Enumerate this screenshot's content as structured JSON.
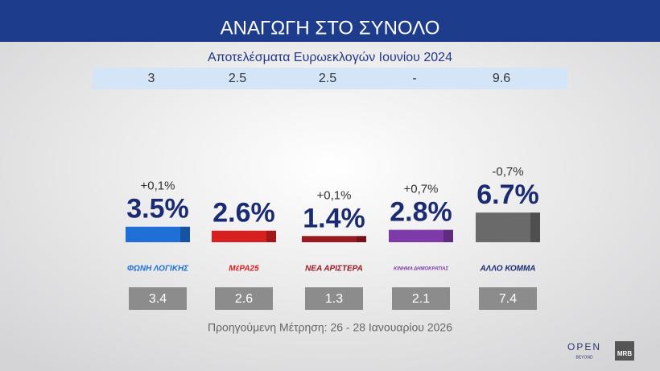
{
  "chart_data": {
    "type": "bar",
    "title": "ΑΝΑΓΩΓΗ ΣΤΟ ΣΥΝΟΛΟ",
    "subtitle": "Αποτελέσματα Ευρωεκλογών Ιουνίου 2024",
    "euro_values": [
      3,
      2.5,
      2.5,
      "-",
      9.6
    ],
    "categories": [
      "ΦΩΝΗ ΛΟΓΙΚΗΣ",
      "ΜέΡΑ25",
      "ΝΕΑ ΑΡΙΣΤΕΡΑ",
      "ΚΙΝΗΜΑ ΔΗΜΟΚΡΑΤΙΑΣ",
      "ΑΛΛΟ ΚΟΜΜΑ"
    ],
    "values": [
      3.5,
      2.6,
      1.4,
      2.8,
      6.7
    ],
    "value_labels": [
      "3.5%",
      "2.6%",
      "1.4%",
      "2.8%",
      "6.7%"
    ],
    "changes": [
      "+0,1%",
      null,
      "+0,1%",
      "+0,7%",
      "-0,7%"
    ],
    "colors": [
      "#1f6fd6",
      "#d82020",
      "#9a1a22",
      "#7e3aa8",
      "#6a6a6a"
    ],
    "previous_values": [
      3.4,
      2.6,
      1.3,
      2.1,
      7.4
    ],
    "previous_label": "Προηγούμενη Μέτρηση: 26 - 28 Ιανουαρίου 2026",
    "branding": [
      "OPEN",
      "BEYOND",
      "MRB"
    ]
  }
}
